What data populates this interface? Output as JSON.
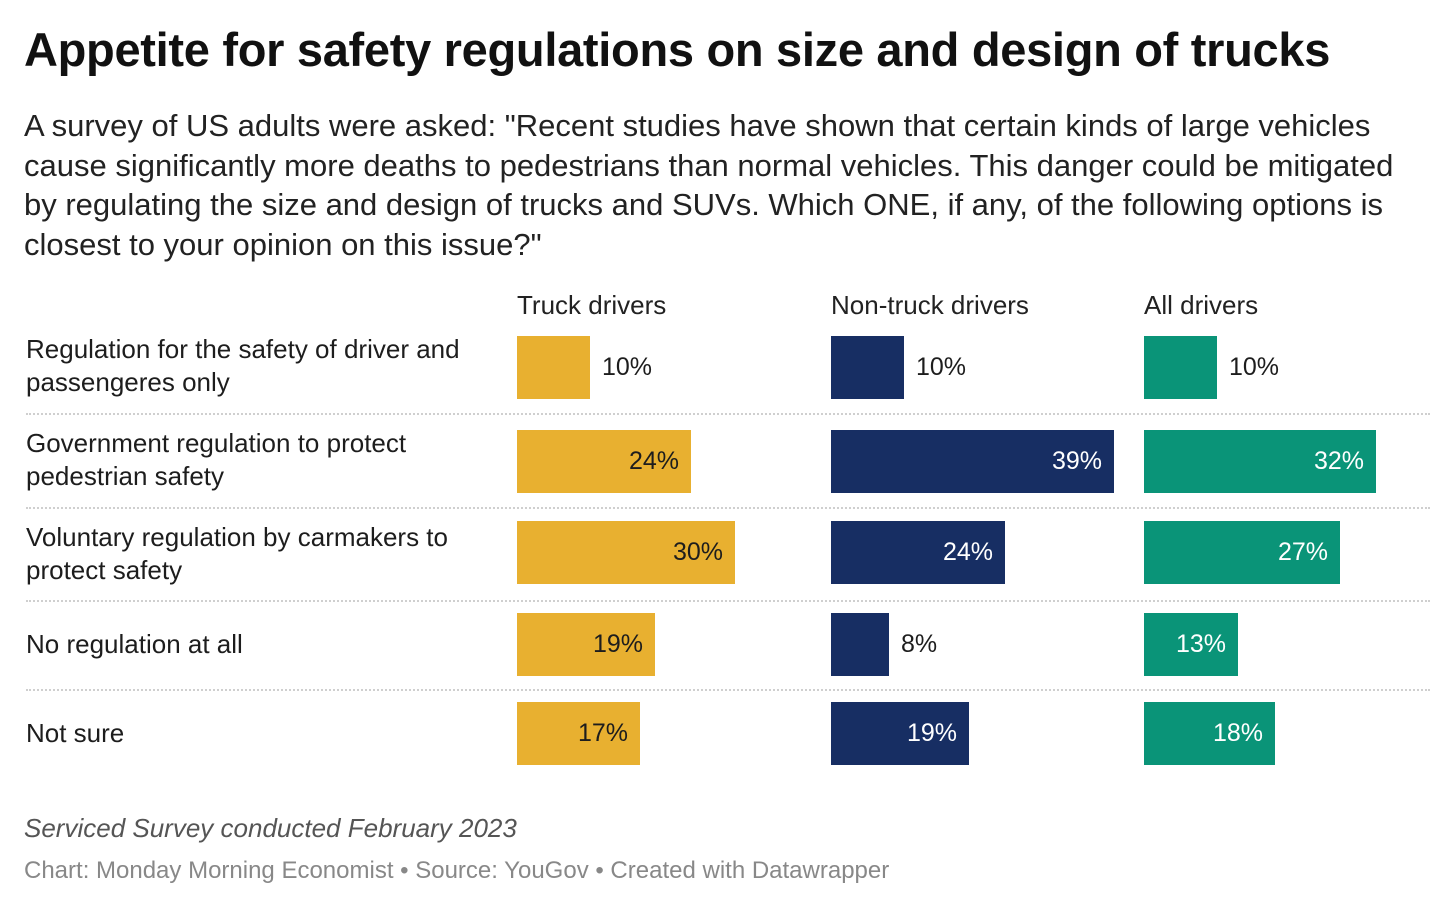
{
  "title": "Appetite for safety regulations on size and design of trucks",
  "subtitle": "A survey of US adults were asked: \"Recent studies have shown that certain kinds of large vehicles cause significantly more deaths to pedestrians than normal vehicles. This danger could be mitigated by regulating the size and design of trucks and SUVs. Which ONE, if any, of the following options is closest to your opinion on this issue?\"",
  "notes": "Serviced Survey conducted February 2023",
  "credit": "Chart: Monday Morning Economist • Source: YouGov • Created with Datawrapper",
  "chart_data": {
    "type": "bar",
    "orientation": "horizontal",
    "layout": "small-multiples",
    "categories": [
      "Regulation for the safety of driver and passengeres only",
      "Government regulation to protect pedestrian safety",
      "Voluntary regulation by carmakers to protect safety",
      "No regulation at all",
      "Not sure"
    ],
    "series": [
      {
        "name": "Truck drivers",
        "color": "#e8b030",
        "values": [
          10,
          24,
          30,
          19,
          17
        ]
      },
      {
        "name": "Non-truck drivers",
        "color": "#172e63",
        "values": [
          10,
          39,
          24,
          8,
          19
        ]
      },
      {
        "name": "All drivers",
        "color": "#0a9478",
        "values": [
          10,
          32,
          27,
          13,
          18
        ]
      }
    ],
    "value_suffix": "%",
    "xlim": [
      0,
      40
    ]
  }
}
